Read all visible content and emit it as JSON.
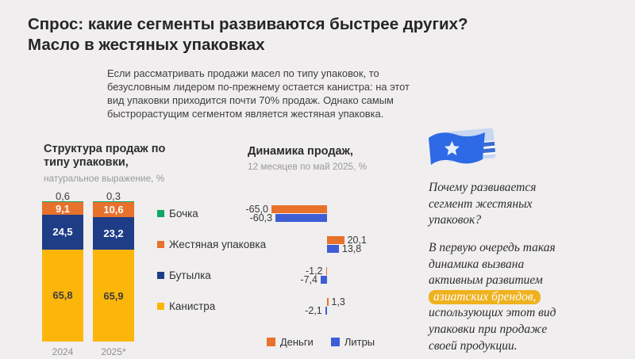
{
  "page": {
    "title_line1": "Спрос: какие сегменты развиваются быстрее других?",
    "title_line2": "Масло в жестяных упаковках",
    "intro": "Если рассматривать продажи масел по типу упаковок, то безусловным лидером по-прежнему остается канистра: на этот вид упаковки приходится почти 70% продаж. Однако самым быстрорастущим сегментом является жестяная упаковка."
  },
  "colors": {
    "background": "#f0eeef",
    "barrel_green": "#0ea565",
    "tin_orange": "#e8712b",
    "bottle_navy": "#1f3c87",
    "canister_yellow": "#fcb60a",
    "litres_blue": "#3e5ed6",
    "highlight_gold": "#efb11e",
    "flag_blue": "#2e6ae5",
    "flag_light_blue": "#c9d7f3"
  },
  "chart_data": [
    {
      "type": "bar",
      "variant": "stacked-column",
      "title": "Структура продаж по типу упаковки,",
      "subtitle": "натуральное выражение, %",
      "categories": [
        "2024",
        "2025*"
      ],
      "ylim": [
        0,
        100
      ],
      "grid": false,
      "series": [
        {
          "name": "Бочка",
          "color": "#0ea565",
          "label_color": "#3a3a3a",
          "values": [
            0.6,
            0.3
          ]
        },
        {
          "name": "Жестяная упаковка",
          "color": "#e8712b",
          "label_color": "#ffffff",
          "values": [
            9.1,
            10.6
          ]
        },
        {
          "name": "Бутылка",
          "color": "#1f3c87",
          "label_color": "#ffffff",
          "values": [
            24.5,
            23.2
          ]
        },
        {
          "name": "Канистра",
          "color": "#fcb60a",
          "label_color": "#3d3d3d",
          "values": [
            65.8,
            65.9
          ]
        }
      ],
      "labels": [
        [
          "0,6",
          "9,1",
          "24,5",
          "65,8"
        ],
        [
          "0,3",
          "10,6",
          "23,2",
          "65,9"
        ]
      ]
    },
    {
      "type": "bar",
      "variant": "horizontal-grouped",
      "title": "Динамика продаж,",
      "subtitle": "12 месяцев по май 2025, %",
      "categories": [
        "Бочка",
        "Жестяная упаковка",
        "Бутылка",
        "Канистра"
      ],
      "xlim": [
        -70,
        30
      ],
      "grid": false,
      "legend_position": "bottom",
      "series": [
        {
          "name": "Деньги",
          "color": "#e8712b",
          "values": [
            -65.0,
            20.1,
            -1.2,
            1.3
          ]
        },
        {
          "name": "Литры",
          "color": "#3e5ed6",
          "values": [
            -60.3,
            13.8,
            -7.4,
            -2.1
          ]
        }
      ],
      "value_labels": [
        [
          "-65,0",
          "-60,3"
        ],
        [
          "20,1",
          "13,8"
        ],
        [
          "-1,2",
          "-7,4"
        ],
        [
          "1,3",
          "-2,1"
        ]
      ]
    }
  ],
  "insight": {
    "question": "Почему развивается сегмент жестяных упаковок?",
    "answer_before": "В первую очередь такая динамика вызвана активным развитием",
    "answer_highlight": "азиатских брендов,",
    "answer_after": "использующих этот вид упаковки при продаже своей продукции."
  }
}
